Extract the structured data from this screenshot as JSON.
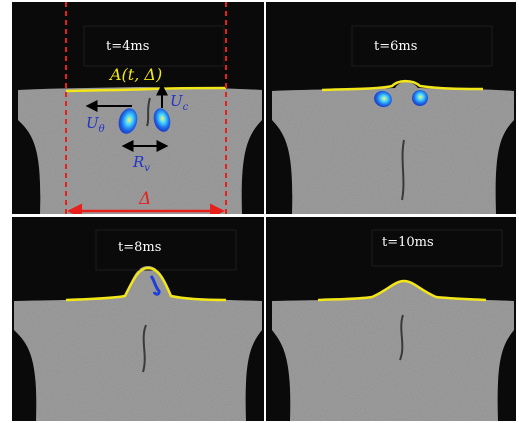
{
  "panels": [
    {
      "time_label": "t=4ms"
    },
    {
      "time_label": "t=6ms"
    },
    {
      "time_label": "t=8ms"
    },
    {
      "time_label": "t=10ms"
    }
  ],
  "annotations": {
    "interface": "A(t, Δ)",
    "axial_velocity": "U",
    "axial_velocity_sub": "c",
    "azimuthal_velocity": "U",
    "azimuthal_velocity_sub": "θ",
    "vortex_radius": "R",
    "vortex_radius_sub": "v",
    "width": "Δ"
  },
  "colors": {
    "interface_line": "#f2e618",
    "window_lines": "#e8201c",
    "arrows": "#000000",
    "vortex_core": "#1d3fd8",
    "vortex_glow": "#f4f05a",
    "annotation_text": "#1f35c8",
    "background": "#0a0a0a",
    "liquid": "#8c8c8c"
  }
}
